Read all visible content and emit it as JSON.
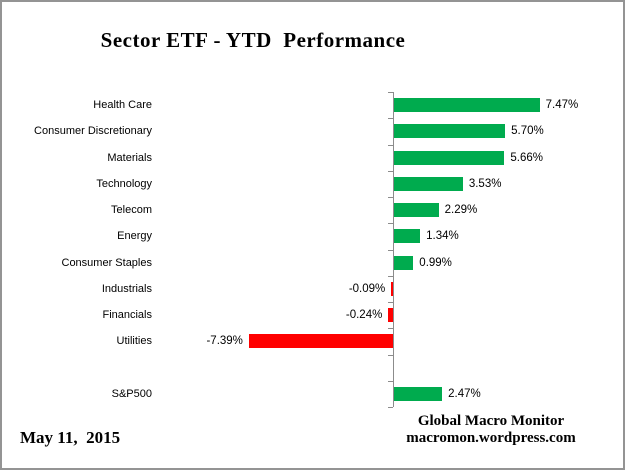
{
  "title": "Sector ETF - YTD  Performance",
  "footer": {
    "date": "May 11,  2015",
    "brand_line1": "Global Macro Monitor",
    "brand_line2": "macromon.wordpress.com"
  },
  "colors": {
    "positive_bar": "#00AB4E",
    "negative_bar": "#FF0000",
    "axis": "#8C8C8C",
    "text": "#000000",
    "frame_border": "#949494"
  },
  "chart_data": {
    "type": "bar",
    "orientation": "horizontal",
    "title": "Sector ETF - YTD  Performance",
    "unit": "%",
    "grid": false,
    "xlim": [
      -8,
      8
    ],
    "baseline": 0,
    "categories": [
      "Health Care",
      "Consumer Discretionary",
      "Materials",
      "Technology",
      "Telecom",
      "Energy",
      "Consumer Staples",
      "Industrials",
      "Financials",
      "Utilities",
      "",
      "S&P500"
    ],
    "values": [
      7.47,
      5.7,
      5.66,
      3.53,
      2.29,
      1.34,
      0.99,
      -0.09,
      -0.24,
      -7.39,
      null,
      2.47
    ],
    "value_labels": [
      "7.47%",
      "5.70%",
      "5.66%",
      "3.53%",
      "2.29%",
      "1.34%",
      "0.99%",
      "-0.09%",
      "-0.24%",
      "-7.39%",
      "",
      "2.47%"
    ],
    "notes": "Positive bars green, negative bars red; blank spacer row between Utilities and S&P500"
  }
}
